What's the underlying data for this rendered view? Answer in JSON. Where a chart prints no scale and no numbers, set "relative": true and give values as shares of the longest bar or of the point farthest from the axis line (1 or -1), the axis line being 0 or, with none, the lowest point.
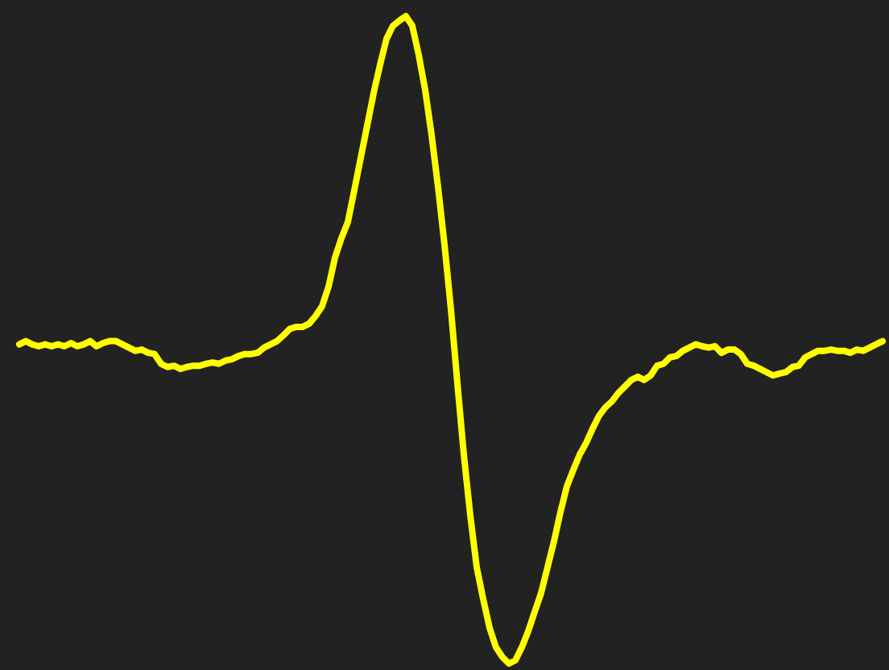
{
  "chart_data": {
    "type": "line",
    "relative": true,
    "marker": "none",
    "line_style": "solid",
    "categories": [
      null,
      null,
      null,
      null,
      null,
      null,
      null,
      null,
      null,
      null,
      null,
      null,
      null,
      null,
      null,
      null,
      null,
      null,
      null,
      null,
      null,
      null,
      null,
      null,
      null,
      null,
      null,
      null,
      null,
      null,
      null,
      null,
      null,
      null,
      null,
      null,
      null,
      null,
      null,
      null,
      null,
      null,
      null,
      null,
      null,
      null,
      null,
      null,
      null,
      null,
      null,
      null,
      null,
      null,
      null,
      null,
      null,
      null,
      null,
      null,
      null,
      null,
      null,
      null,
      null,
      null,
      null,
      null,
      null,
      null,
      null,
      null,
      null,
      null,
      null,
      null,
      null,
      null,
      null,
      null,
      null,
      null,
      null,
      null,
      null,
      null,
      null,
      null,
      null,
      null,
      null,
      null,
      null,
      null,
      null,
      null,
      null,
      null,
      null,
      null,
      null,
      null,
      null,
      null,
      null,
      null,
      null,
      null,
      null,
      null,
      null,
      null,
      null,
      null,
      null,
      null,
      null,
      null,
      null,
      null,
      null,
      null,
      null,
      null,
      null,
      null,
      null,
      null,
      null,
      null,
      null,
      null,
      null,
      null,
      null
    ],
    "series": [
      {
        "color": "#ffff00",
        "values": [
          0.493,
          0.498,
          0.493,
          0.49,
          0.493,
          0.49,
          0.493,
          0.49,
          0.495,
          0.49,
          0.493,
          0.498,
          0.49,
          0.495,
          0.498,
          0.498,
          0.493,
          0.488,
          0.483,
          0.485,
          0.48,
          0.478,
          0.463,
          0.458,
          0.46,
          0.455,
          0.458,
          0.46,
          0.46,
          0.463,
          0.465,
          0.463,
          0.468,
          0.47,
          0.475,
          0.478,
          0.478,
          0.48,
          0.488,
          0.493,
          0.498,
          0.507,
          0.517,
          0.52,
          0.52,
          0.525,
          0.537,
          0.552,
          0.582,
          0.627,
          0.657,
          0.682,
          0.731,
          0.781,
          0.831,
          0.881,
          0.925,
          0.965,
          0.985,
          0.993,
          1,
          0.985,
          0.94,
          0.886,
          0.816,
          0.736,
          0.647,
          0.547,
          0.433,
          0.323,
          0.229,
          0.149,
          0.1,
          0.055,
          0.025,
          0.01,
          0,
          0.005,
          0.025,
          0.05,
          0.08,
          0.109,
          0.149,
          0.189,
          0.234,
          0.274,
          0.299,
          0.323,
          0.341,
          0.363,
          0.383,
          0.396,
          0.405,
          0.418,
          0.428,
          0.438,
          0.443,
          0.438,
          0.445,
          0.46,
          0.463,
          0.473,
          0.475,
          0.483,
          0.488,
          0.493,
          0.49,
          0.488,
          0.49,
          0.48,
          0.485,
          0.485,
          0.478,
          0.463,
          0.46,
          0.455,
          0.45,
          0.445,
          0.448,
          0.45,
          0.458,
          0.46,
          0.473,
          0.478,
          0.483,
          0.483,
          0.485,
          0.483,
          0.483,
          0.48,
          0.485,
          0.483,
          0.488,
          0.493,
          0.498
        ]
      }
    ]
  }
}
